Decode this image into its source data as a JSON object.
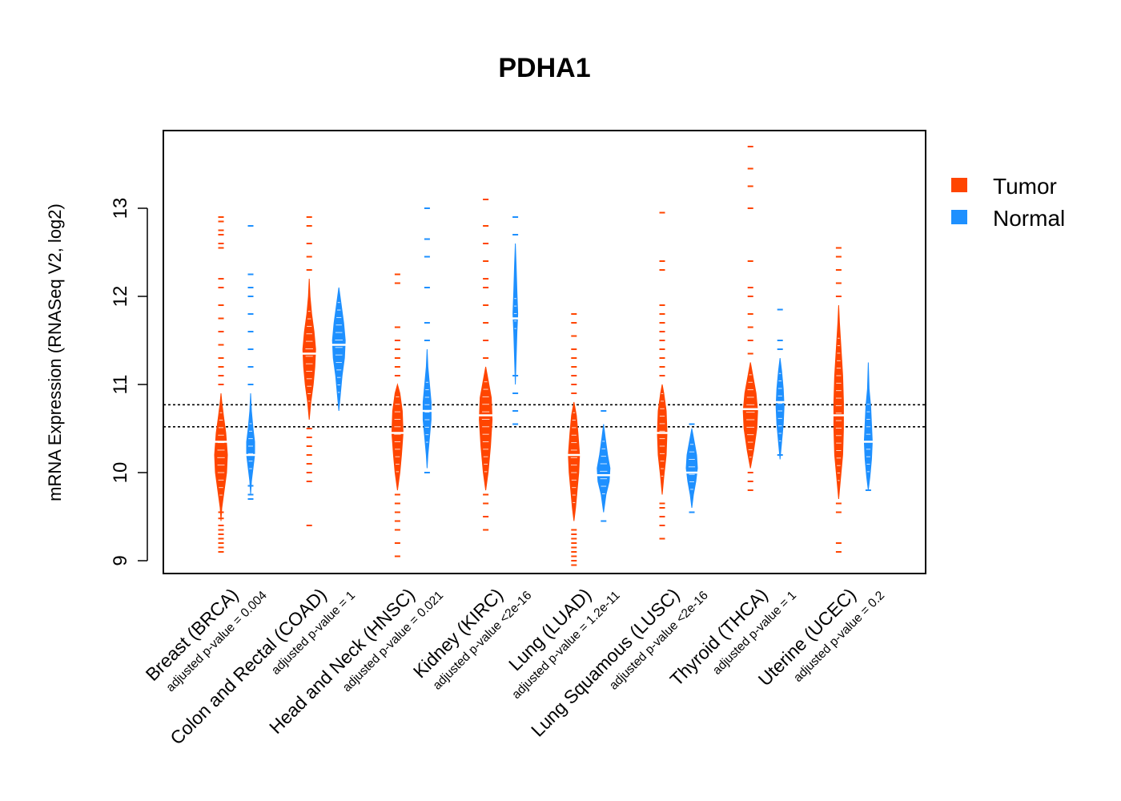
{
  "chart_data": {
    "type": "bean",
    "title": "PDHA1",
    "ylabel": "mRNA Expression (RNASeq V2, log2)",
    "xlabel": "",
    "ylim": [
      8.85,
      13.85
    ],
    "yticks": [
      9,
      10,
      11,
      12,
      13
    ],
    "reference_lines": [
      10.52,
      10.77
    ],
    "series_colors": {
      "Tumor": "#ff4500",
      "Normal": "#1e90ff"
    },
    "legend": [
      {
        "name": "Tumor",
        "color": "#ff4500"
      },
      {
        "name": "Normal",
        "color": "#1e90ff"
      }
    ],
    "categories": [
      {
        "label": "Breast (BRCA)",
        "pvalue": "adjusted p-value = 0.004",
        "tumor": {
          "median": 10.35,
          "bean": [
            [
              9.45,
              0
            ],
            [
              9.6,
              1
            ],
            [
              9.8,
              4
            ],
            [
              10.0,
              7
            ],
            [
              10.2,
              8
            ],
            [
              10.45,
              6
            ],
            [
              10.65,
              3
            ],
            [
              10.8,
              1
            ],
            [
              10.9,
              0
            ]
          ],
          "outliers": [
            9.1,
            9.15,
            9.2,
            9.25,
            9.3,
            9.35,
            9.4,
            9.48,
            9.55,
            11.0,
            11.1,
            11.2,
            11.3,
            11.45,
            11.6,
            11.75,
            11.9,
            12.1,
            12.2,
            12.55,
            12.6,
            12.7,
            12.75,
            12.85,
            12.9
          ]
        },
        "normal": {
          "median": 10.2,
          "bean": [
            [
              9.75,
              0
            ],
            [
              9.9,
              1
            ],
            [
              10.05,
              3
            ],
            [
              10.2,
              5
            ],
            [
              10.35,
              5
            ],
            [
              10.5,
              3
            ],
            [
              10.7,
              1
            ],
            [
              10.9,
              0
            ]
          ],
          "outliers": [
            9.7,
            9.75,
            9.85,
            11.0,
            11.2,
            11.4,
            11.6,
            11.8,
            12.0,
            12.1,
            12.25,
            12.8
          ]
        }
      },
      {
        "label": "Colon and Rectal (COAD)",
        "pvalue": "adjusted p-value = 1",
        "tumor": {
          "median": 11.35,
          "bean": [
            [
              10.6,
              0
            ],
            [
              10.8,
              2
            ],
            [
              11.0,
              5
            ],
            [
              11.2,
              7
            ],
            [
              11.4,
              8
            ],
            [
              11.6,
              6
            ],
            [
              11.8,
              3
            ],
            [
              12.0,
              1
            ],
            [
              12.2,
              0
            ]
          ],
          "outliers": [
            9.4,
            9.9,
            10.0,
            10.1,
            10.2,
            10.3,
            10.4,
            10.5,
            12.3,
            12.45,
            12.6,
            12.8,
            12.9
          ]
        },
        "normal": {
          "median": 11.45,
          "bean": [
            [
              10.7,
              0
            ],
            [
              10.9,
              2
            ],
            [
              11.1,
              4
            ],
            [
              11.3,
              7
            ],
            [
              11.5,
              8
            ],
            [
              11.7,
              6
            ],
            [
              11.9,
              3
            ],
            [
              12.1,
              0
            ]
          ],
          "outliers": []
        }
      },
      {
        "label": "Head and Neck (HNSC)",
        "pvalue": "adjusted p-value = 0.021",
        "tumor": {
          "median": 10.45,
          "bean": [
            [
              9.8,
              0
            ],
            [
              10.0,
              3
            ],
            [
              10.2,
              5
            ],
            [
              10.45,
              7
            ],
            [
              10.7,
              6
            ],
            [
              10.9,
              3
            ],
            [
              11.0,
              0
            ]
          ],
          "outliers": [
            9.05,
            9.2,
            9.35,
            9.45,
            9.55,
            9.65,
            9.75,
            11.1,
            11.2,
            11.3,
            11.4,
            11.5,
            11.65,
            12.15,
            12.25
          ]
        },
        "normal": {
          "median": 10.7,
          "bean": [
            [
              10.05,
              0
            ],
            [
              10.2,
              1
            ],
            [
              10.4,
              3
            ],
            [
              10.6,
              5
            ],
            [
              10.8,
              5
            ],
            [
              11.0,
              3
            ],
            [
              11.2,
              1
            ],
            [
              11.4,
              0
            ]
          ],
          "outliers": [
            10.0,
            11.5,
            11.7,
            12.1,
            12.45,
            12.65,
            13.0
          ]
        }
      },
      {
        "label": "Kidney (KIRC)",
        "pvalue": "adjusted p-value <2e-16",
        "tumor": {
          "median": 10.65,
          "bean": [
            [
              9.8,
              0
            ],
            [
              10.0,
              3
            ],
            [
              10.3,
              6
            ],
            [
              10.6,
              8
            ],
            [
              10.85,
              7
            ],
            [
              11.05,
              3
            ],
            [
              11.2,
              0
            ]
          ],
          "outliers": [
            9.35,
            9.5,
            9.65,
            9.75,
            11.3,
            11.5,
            11.7,
            11.9,
            12.1,
            12.2,
            12.4,
            12.6,
            12.8,
            13.1
          ]
        },
        "normal": {
          "median": 11.75,
          "bean": [
            [
              11.0,
              0
            ],
            [
              11.3,
              1
            ],
            [
              11.6,
              2
            ],
            [
              11.8,
              3
            ],
            [
              12.05,
              2
            ],
            [
              12.35,
              1
            ],
            [
              12.6,
              0
            ]
          ],
          "outliers": [
            10.55,
            10.7,
            10.9,
            11.1,
            12.7,
            12.9
          ]
        }
      },
      {
        "label": "Lung (LUAD)",
        "pvalue": "adjusted p-value = 1.2e-11",
        "tumor": {
          "median": 10.2,
          "bean": [
            [
              9.45,
              0
            ],
            [
              9.6,
              2
            ],
            [
              9.8,
              4
            ],
            [
              10.0,
              6
            ],
            [
              10.2,
              7
            ],
            [
              10.45,
              5
            ],
            [
              10.65,
              3
            ],
            [
              10.8,
              0
            ]
          ],
          "outliers": [
            8.95,
            9.0,
            9.05,
            9.1,
            9.15,
            9.2,
            9.25,
            9.3,
            9.35,
            10.9,
            11.0,
            11.1,
            11.2,
            11.3,
            11.4,
            11.55,
            11.7,
            11.8
          ]
        },
        "normal": {
          "median": 9.97,
          "bean": [
            [
              9.55,
              0
            ],
            [
              9.75,
              3
            ],
            [
              9.9,
              7
            ],
            [
              10.05,
              8
            ],
            [
              10.2,
              5
            ],
            [
              10.4,
              2
            ],
            [
              10.55,
              0
            ]
          ],
          "outliers": [
            9.45,
            10.7
          ]
        }
      },
      {
        "label": "Lung Squamous (LUSC)",
        "pvalue": "adjusted p-value <2e-16",
        "tumor": {
          "median": 10.45,
          "bean": [
            [
              9.75,
              0
            ],
            [
              9.95,
              2
            ],
            [
              10.2,
              5
            ],
            [
              10.45,
              6
            ],
            [
              10.7,
              5
            ],
            [
              10.9,
              2
            ],
            [
              11.0,
              0
            ]
          ],
          "outliers": [
            9.25,
            9.4,
            9.5,
            9.6,
            9.65,
            11.1,
            11.2,
            11.3,
            11.4,
            11.5,
            11.6,
            11.7,
            11.8,
            11.9,
            12.3,
            12.4,
            12.95
          ]
        },
        "normal": {
          "median": 10.0,
          "bean": [
            [
              9.6,
              0
            ],
            [
              9.75,
              2
            ],
            [
              9.9,
              5
            ],
            [
              10.05,
              7
            ],
            [
              10.2,
              6
            ],
            [
              10.35,
              3
            ],
            [
              10.5,
              0
            ]
          ],
          "outliers": [
            9.55,
            10.55
          ]
        }
      },
      {
        "label": "Thyroid (THCA)",
        "pvalue": "adjusted p-value = 1",
        "tumor": {
          "median": 10.72,
          "bean": [
            [
              10.05,
              0
            ],
            [
              10.25,
              4
            ],
            [
              10.5,
              8
            ],
            [
              10.7,
              9
            ],
            [
              10.9,
              7
            ],
            [
              11.1,
              3
            ],
            [
              11.25,
              0
            ]
          ],
          "outliers": [
            9.8,
            9.9,
            10.0,
            11.35,
            11.5,
            11.65,
            11.8,
            12.0,
            12.1,
            12.4,
            13.0,
            13.25,
            13.45,
            13.7
          ]
        },
        "normal": {
          "median": 10.8,
          "bean": [
            [
              10.15,
              0
            ],
            [
              10.35,
              2
            ],
            [
              10.55,
              4
            ],
            [
              10.75,
              5
            ],
            [
              10.95,
              4
            ],
            [
              11.15,
              2
            ],
            [
              11.3,
              0
            ]
          ],
          "outliers": [
            10.2,
            11.4,
            11.5,
            11.85
          ]
        }
      },
      {
        "label": "Uterine (UCEC)",
        "pvalue": "adjusted p-value = 0.2",
        "tumor": {
          "median": 10.65,
          "bean": [
            [
              9.7,
              0
            ],
            [
              9.9,
              2
            ],
            [
              10.2,
              5
            ],
            [
              10.5,
              6
            ],
            [
              10.8,
              6
            ],
            [
              11.1,
              5
            ],
            [
              11.4,
              3
            ],
            [
              11.7,
              1
            ],
            [
              11.9,
              0
            ]
          ],
          "outliers": [
            9.1,
            9.2,
            9.55,
            9.65,
            12.0,
            12.15,
            12.3,
            12.45,
            12.55
          ]
        },
        "normal": {
          "median": 10.35,
          "bean": [
            [
              9.8,
              0
            ],
            [
              9.95,
              2
            ],
            [
              10.15,
              4
            ],
            [
              10.35,
              5
            ],
            [
              10.55,
              4
            ],
            [
              10.75,
              3
            ],
            [
              10.95,
              1
            ],
            [
              11.25,
              0
            ]
          ],
          "outliers": [
            9.8
          ]
        }
      }
    ]
  }
}
